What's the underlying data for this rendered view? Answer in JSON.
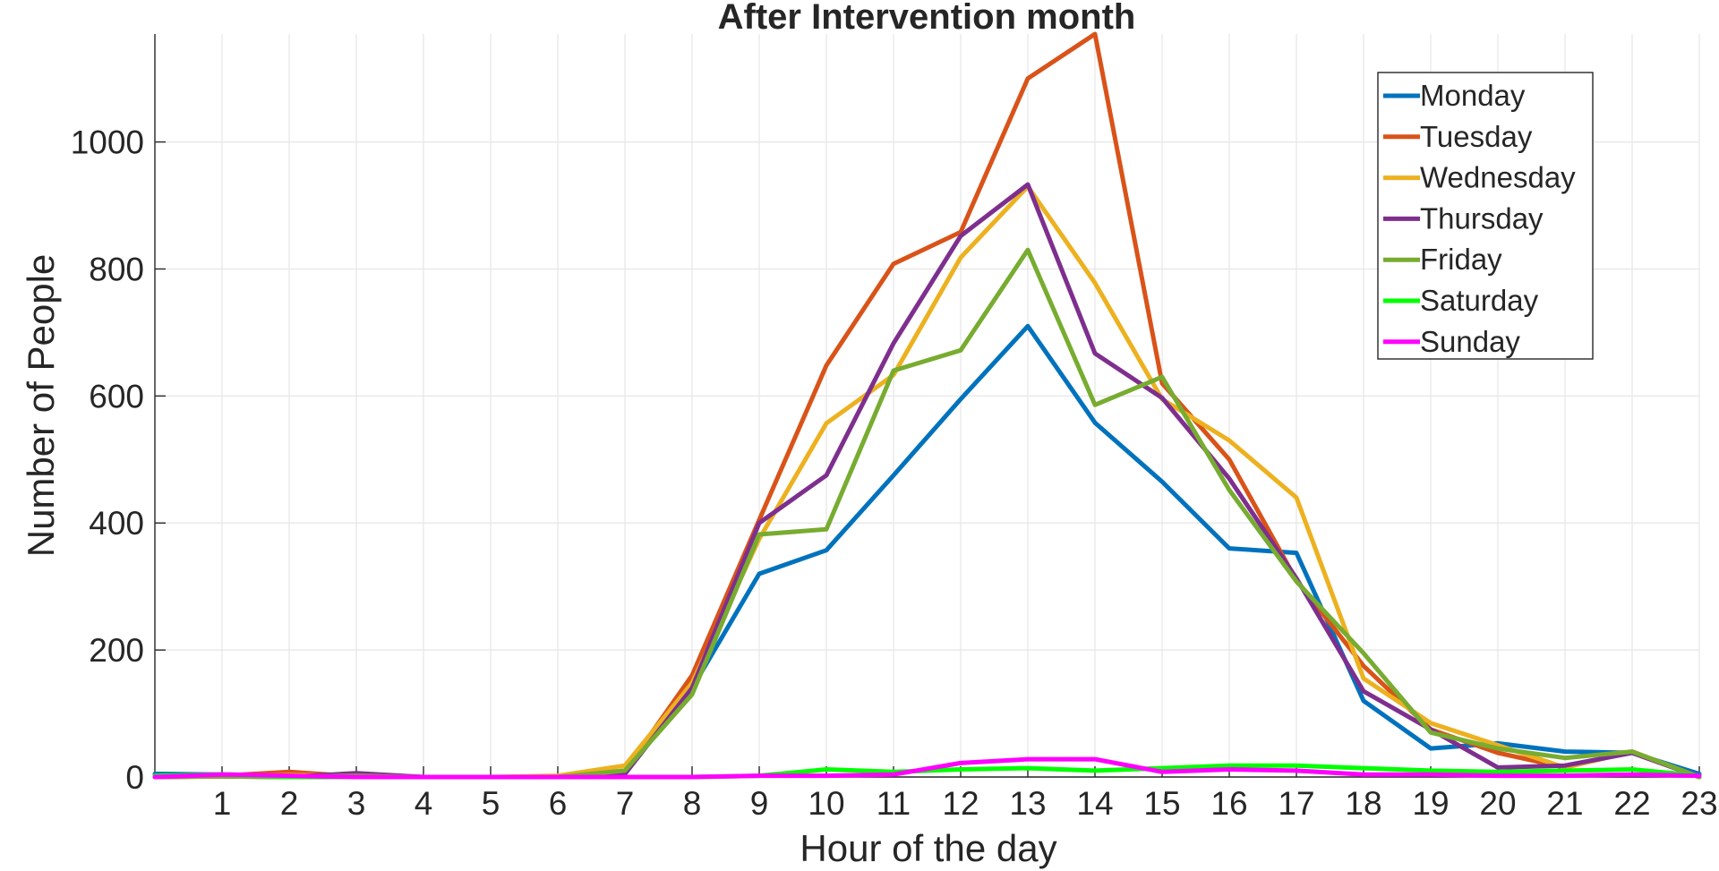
{
  "chart_data": {
    "type": "line",
    "title": "After Intervention month",
    "xlabel": "Hour of the day",
    "ylabel": "Number of People",
    "xlim": [
      0,
      23
    ],
    "ylim": [
      0,
      1170
    ],
    "x_ticks": [
      1,
      2,
      3,
      4,
      5,
      6,
      7,
      8,
      9,
      10,
      11,
      12,
      13,
      14,
      15,
      16,
      17,
      18,
      19,
      20,
      21,
      22,
      23
    ],
    "y_ticks": [
      0,
      200,
      400,
      600,
      800,
      1000
    ],
    "grid": true,
    "legend_position": "top-right",
    "x": [
      0,
      1,
      2,
      3,
      4,
      5,
      6,
      7,
      8,
      9,
      10,
      11,
      12,
      13,
      14,
      15,
      16,
      17,
      18,
      19,
      20,
      21,
      22,
      23
    ],
    "series": [
      {
        "name": "Monday",
        "color": "#0072BD",
        "values": [
          5,
          4,
          2,
          2,
          0,
          0,
          0,
          5,
          140,
          320,
          357,
          475,
          595,
          710,
          558,
          465,
          360,
          353,
          120,
          45,
          53,
          40,
          38,
          5
        ]
      },
      {
        "name": "Tuesday",
        "color": "#D95319",
        "values": [
          1,
          2,
          8,
          1,
          0,
          0,
          0,
          10,
          160,
          405,
          648,
          808,
          858,
          1100,
          1170,
          620,
          500,
          310,
          175,
          75,
          38,
          15,
          40,
          0
        ]
      },
      {
        "name": "Wednesday",
        "color": "#EDB120",
        "values": [
          0,
          1,
          3,
          2,
          0,
          0,
          2,
          18,
          148,
          375,
          557,
          633,
          818,
          930,
          778,
          595,
          530,
          440,
          155,
          85,
          50,
          15,
          40,
          0
        ]
      },
      {
        "name": "Thursday",
        "color": "#7E2F8E",
        "values": [
          0,
          1,
          0,
          6,
          0,
          0,
          0,
          5,
          140,
          400,
          475,
          683,
          852,
          933,
          667,
          597,
          470,
          313,
          135,
          75,
          15,
          18,
          38,
          0
        ]
      },
      {
        "name": "Friday",
        "color": "#77AC30",
        "values": [
          0,
          1,
          0,
          2,
          0,
          0,
          0,
          10,
          130,
          382,
          390,
          640,
          672,
          830,
          586,
          630,
          452,
          308,
          195,
          70,
          45,
          30,
          40,
          0
        ]
      },
      {
        "name": "Saturday",
        "color": "#00FF00",
        "values": [
          2,
          4,
          0,
          0,
          0,
          0,
          0,
          0,
          0,
          2,
          12,
          8,
          12,
          14,
          10,
          14,
          18,
          18,
          14,
          10,
          8,
          10,
          12,
          2
        ]
      },
      {
        "name": "Sunday",
        "color": "#FF00FF",
        "values": [
          0,
          4,
          2,
          0,
          0,
          0,
          0,
          0,
          0,
          2,
          2,
          4,
          22,
          28,
          28,
          8,
          12,
          10,
          4,
          4,
          2,
          2,
          4,
          2
        ]
      }
    ]
  }
}
